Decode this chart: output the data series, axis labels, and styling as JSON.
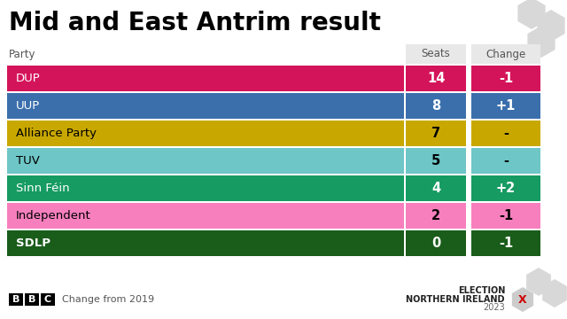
{
  "title": "Mid and East Antrim result",
  "parties": [
    "DUP",
    "UUP",
    "Alliance Party",
    "TUV",
    "Sinn Féin",
    "Independent",
    "SDLP"
  ],
  "seats": [
    14,
    8,
    7,
    5,
    4,
    2,
    0
  ],
  "changes": [
    "-1",
    "+1",
    "-",
    "-",
    "+2",
    "-1",
    "-1"
  ],
  "colors": [
    "#d4145a",
    "#3b6fac",
    "#c8a800",
    "#6ec6c6",
    "#169b62",
    "#f77fbe",
    "#1a5c1a"
  ],
  "text_colors": [
    "white",
    "white",
    "black",
    "black",
    "white",
    "black",
    "white"
  ],
  "bold_parties": [
    false,
    false,
    false,
    false,
    false,
    false,
    true
  ],
  "header_party": "Party",
  "header_seats": "Seats",
  "header_change": "Change",
  "bg_color": "#ffffff",
  "footer_text": "Change from 2019",
  "election_line1": "ELECTION",
  "election_line2": "NORTHERN IRELAND",
  "election_line3": "2023",
  "hex_color": "#d8d8d8",
  "header_bg": "#e8e8e8"
}
